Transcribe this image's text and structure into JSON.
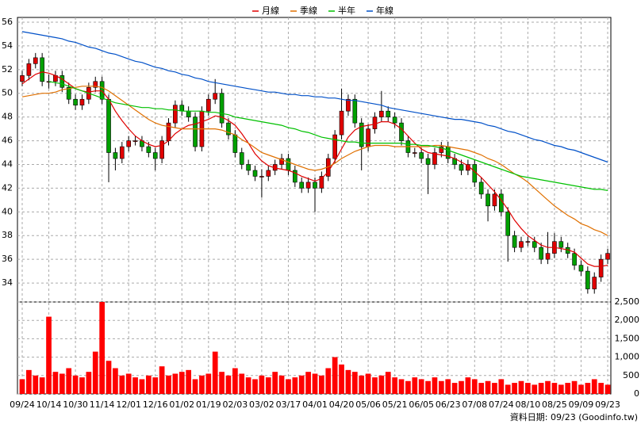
{
  "chart_data": [
    {
      "type": "candlestick",
      "up_color": "#e00000",
      "down_color": "#00a000",
      "ylim": [
        32.4,
        56.4
      ],
      "yticks": [
        34,
        36,
        38,
        40,
        42,
        44,
        46,
        48,
        50,
        52,
        54,
        56
      ],
      "grid": true,
      "legend": "top",
      "ohlc": [
        [
          51,
          51.9,
          50.6,
          51.5
        ],
        [
          51.5,
          52.9,
          51.1,
          52.5
        ],
        [
          52.5,
          53.4,
          52.1,
          53
        ],
        [
          53,
          53.4,
          50.6,
          51
        ],
        [
          51,
          51.6,
          50.4,
          51
        ],
        [
          51,
          51.9,
          50.6,
          51.5
        ],
        [
          51.5,
          51.9,
          50.1,
          50.5
        ],
        [
          50.5,
          50.9,
          49.1,
          49.5
        ],
        [
          49.5,
          49.9,
          48.6,
          49
        ],
        [
          49,
          49.9,
          48.6,
          49.5
        ],
        [
          49.5,
          50.9,
          49.1,
          50.5
        ],
        [
          50.5,
          51.4,
          50.1,
          51
        ],
        [
          51,
          51.4,
          49.1,
          49.5
        ],
        [
          49.5,
          49.9,
          42.5,
          45
        ],
        [
          45,
          45.4,
          43.5,
          44.5
        ],
        [
          44.5,
          45.9,
          44.1,
          45.5
        ],
        [
          45.5,
          46.4,
          45.1,
          46
        ],
        [
          46,
          46.4,
          45.6,
          46
        ],
        [
          46,
          46.4,
          45.1,
          45.5
        ],
        [
          45.5,
          45.9,
          44.6,
          45
        ],
        [
          45,
          45.4,
          43.5,
          44.5
        ],
        [
          44.5,
          46.4,
          44.1,
          46
        ],
        [
          46,
          47.9,
          45.6,
          47.5
        ],
        [
          47.5,
          49.4,
          47.1,
          49
        ],
        [
          49,
          49.4,
          48.1,
          48.5
        ],
        [
          48.5,
          48.9,
          47.6,
          48
        ],
        [
          48,
          48.4,
          45.1,
          45.5
        ],
        [
          45.5,
          48.9,
          45.1,
          48.5
        ],
        [
          48.5,
          49.9,
          48.1,
          49.5
        ],
        [
          49.5,
          51.2,
          49.1,
          50
        ],
        [
          50,
          50.4,
          47.1,
          47.5
        ],
        [
          47.5,
          47.9,
          46.1,
          46.5
        ],
        [
          46.5,
          46.9,
          44.6,
          45
        ],
        [
          45,
          45.4,
          43.6,
          44
        ],
        [
          44,
          44.4,
          43.1,
          43.5
        ],
        [
          43.5,
          43.9,
          42.6,
          43
        ],
        [
          43,
          43.6,
          41.2,
          43
        ],
        [
          43,
          43.9,
          42.6,
          43.5
        ],
        [
          43.5,
          44.4,
          43.1,
          44
        ],
        [
          44,
          44.9,
          43.6,
          44.5
        ],
        [
          44.5,
          44.9,
          43.1,
          43.5
        ],
        [
          43.5,
          43.9,
          42.1,
          42.5
        ],
        [
          42.5,
          42.9,
          41.6,
          42
        ],
        [
          42,
          42.9,
          41.6,
          42.5
        ],
        [
          42.5,
          42.9,
          40,
          42
        ],
        [
          42,
          43.4,
          41.6,
          43
        ],
        [
          43,
          44.9,
          42.6,
          44.5
        ],
        [
          44.5,
          46.9,
          44.1,
          46.5
        ],
        [
          46.5,
          50.4,
          46.1,
          48.5
        ],
        [
          48.5,
          49.9,
          48.1,
          49.5
        ],
        [
          49.5,
          49.9,
          47.1,
          47.5
        ],
        [
          47.5,
          47.9,
          43.5,
          45.5
        ],
        [
          45.5,
          47.4,
          45.1,
          47
        ],
        [
          47,
          48.4,
          46.6,
          48
        ],
        [
          48,
          50.2,
          47.6,
          48.5
        ],
        [
          48.5,
          48.9,
          47.6,
          48
        ],
        [
          48,
          48.4,
          47.1,
          47.5
        ],
        [
          47.5,
          47.9,
          45.6,
          46
        ],
        [
          46,
          46.4,
          44.6,
          45
        ],
        [
          45,
          45.4,
          44.6,
          45
        ],
        [
          45,
          45.4,
          44.1,
          44.5
        ],
        [
          44.5,
          44.9,
          41.5,
          44
        ],
        [
          44,
          45.4,
          43.6,
          45
        ],
        [
          45,
          45.9,
          44.6,
          45.5
        ],
        [
          45.5,
          45.9,
          44.1,
          44.5
        ],
        [
          44.5,
          44.9,
          43.6,
          44
        ],
        [
          44,
          44.4,
          43.1,
          43.5
        ],
        [
          43.5,
          44.4,
          43.1,
          44
        ],
        [
          44,
          44.4,
          42.1,
          42.5
        ],
        [
          42.5,
          42.9,
          41.1,
          41.5
        ],
        [
          41.5,
          41.9,
          39.2,
          40.5
        ],
        [
          40.5,
          41.9,
          40.1,
          41.5
        ],
        [
          41.5,
          41.9,
          39.6,
          40
        ],
        [
          40,
          40.4,
          35.8,
          38
        ],
        [
          38,
          38.4,
          36.6,
          37
        ],
        [
          37,
          37.9,
          36.6,
          37.5
        ],
        [
          37.5,
          37.9,
          37.1,
          37.5
        ],
        [
          37.5,
          37.9,
          36.6,
          37
        ],
        [
          37,
          37.4,
          35.6,
          36
        ],
        [
          36,
          38.3,
          35.6,
          36.5
        ],
        [
          36.5,
          38.2,
          36.1,
          37.5
        ],
        [
          37.5,
          37.9,
          36.6,
          37
        ],
        [
          37,
          37.4,
          36.1,
          36.5
        ],
        [
          36.5,
          36.9,
          35.1,
          35.5
        ],
        [
          35.5,
          35.9,
          34.6,
          35
        ],
        [
          35,
          35.4,
          33.1,
          33.5
        ],
        [
          33.5,
          34.9,
          33.1,
          34.5
        ],
        [
          34.5,
          36.4,
          34.1,
          36
        ],
        [
          36,
          36.9,
          35.6,
          36.5
        ]
      ],
      "series": [
        {
          "name": "月線",
          "color": "#e00000",
          "values": [
            50.8,
            51.2,
            51.6,
            51.8,
            51.7,
            51.5,
            51.2,
            50.8,
            50.4,
            50.2,
            50.1,
            50.2,
            50.2,
            49.5,
            48.5,
            47.7,
            47.0,
            46.4,
            46.0,
            45.7,
            45.5,
            45.6,
            46.0,
            46.6,
            47.0,
            47.3,
            47.4,
            47.6,
            47.8,
            48.1,
            48.0,
            47.7,
            47.3,
            46.6,
            45.8,
            44.9,
            44.3,
            43.9,
            43.7,
            43.6,
            43.5,
            43.3,
            43.0,
            42.8,
            42.6,
            42.8,
            43.4,
            44.3,
            45.3,
            46.3,
            46.9,
            47.2,
            47.3,
            47.4,
            47.6,
            47.6,
            47.4,
            47.0,
            46.4,
            45.8,
            45.3,
            45.0,
            44.9,
            44.8,
            44.7,
            44.5,
            44.2,
            43.9,
            43.4,
            42.9,
            42.3,
            41.7,
            41.0,
            40.2,
            39.3,
            38.6,
            38.0,
            37.6,
            37.2,
            37.0,
            37.0,
            36.9,
            36.8,
            36.6,
            36.1,
            35.6,
            35.4,
            35.4,
            35.5
          ]
        },
        {
          "name": "季線",
          "color": "#e07000",
          "values": [
            49.7,
            49.8,
            49.9,
            50.0,
            50.0,
            50.1,
            50.3,
            50.4,
            50.5,
            50.6,
            50.6,
            50.6,
            50.5,
            50.2,
            49.8,
            49.4,
            49.0,
            48.6,
            48.2,
            47.8,
            47.5,
            47.3,
            47.2,
            47.1,
            47.0,
            47.0,
            47.0,
            47.0,
            47.0,
            47.0,
            46.9,
            46.7,
            46.5,
            46.1,
            45.8,
            45.4,
            45.0,
            44.8,
            44.6,
            44.4,
            44.2,
            44.0,
            43.8,
            43.6,
            43.5,
            43.6,
            43.8,
            44.1,
            44.5,
            44.8,
            45.1,
            45.3,
            45.5,
            45.6,
            45.6,
            45.6,
            45.5,
            45.5,
            45.5,
            45.5,
            45.5,
            45.5,
            45.6,
            45.6,
            45.5,
            45.4,
            45.3,
            45.2,
            45.0,
            44.8,
            44.5,
            44.3,
            44.0,
            43.6,
            43.2,
            42.9,
            42.5,
            42.0,
            41.5,
            41.0,
            40.5,
            40.1,
            39.7,
            39.4,
            39.0,
            38.8,
            38.5,
            38.3,
            38.0
          ]
        },
        {
          "name": "半年",
          "color": "#00c000",
          "values": [
            null,
            null,
            null,
            null,
            51.0,
            50.9,
            50.8,
            50.6,
            50.4,
            50.2,
            50.0,
            49.8,
            49.6,
            49.4,
            49.2,
            49.1,
            49.0,
            48.9,
            48.8,
            48.8,
            48.7,
            48.7,
            48.6,
            48.6,
            48.5,
            48.5,
            48.5,
            48.5,
            48.4,
            48.4,
            48.3,
            48.2,
            48.0,
            47.9,
            47.8,
            47.7,
            47.6,
            47.5,
            47.4,
            47.3,
            47.1,
            47.0,
            46.8,
            46.7,
            46.5,
            46.3,
            46.2,
            46.1,
            46.0,
            45.9,
            45.9,
            45.8,
            45.8,
            45.8,
            45.8,
            45.8,
            45.8,
            45.8,
            45.7,
            45.7,
            45.6,
            45.6,
            45.5,
            45.4,
            45.2,
            45.0,
            44.8,
            44.6,
            44.4,
            44.2,
            44.0,
            43.8,
            43.6,
            43.4,
            43.2,
            43.0,
            42.9,
            42.8,
            42.7,
            42.6,
            42.5,
            42.4,
            42.3,
            42.2,
            42.1,
            42.0,
            41.9,
            41.9,
            41.8
          ]
        },
        {
          "name": "年線",
          "color": "#0050c8",
          "values": [
            55.2,
            55.1,
            55.0,
            54.9,
            54.8,
            54.7,
            54.6,
            54.4,
            54.3,
            54.1,
            53.9,
            53.8,
            53.6,
            53.4,
            53.3,
            53.1,
            52.9,
            52.7,
            52.6,
            52.4,
            52.2,
            52.1,
            51.9,
            51.8,
            51.6,
            51.5,
            51.3,
            51.2,
            51.0,
            50.9,
            50.8,
            50.7,
            50.6,
            50.5,
            50.4,
            50.3,
            50.2,
            50.1,
            50.1,
            50.0,
            49.9,
            49.9,
            49.8,
            49.8,
            49.7,
            49.7,
            49.6,
            49.6,
            49.5,
            49.4,
            49.4,
            49.3,
            49.2,
            49.1,
            49.0,
            48.8,
            48.7,
            48.6,
            48.5,
            48.4,
            48.3,
            48.2,
            48.1,
            48.0,
            47.9,
            47.8,
            47.8,
            47.7,
            47.6,
            47.5,
            47.3,
            47.2,
            47.0,
            46.8,
            46.7,
            46.5,
            46.3,
            46.1,
            46.0,
            45.8,
            45.6,
            45.5,
            45.3,
            45.2,
            45.0,
            44.8,
            44.6,
            44.4,
            44.2
          ]
        }
      ]
    },
    {
      "type": "bar",
      "color": "#ff0000",
      "ylim": [
        0,
        2500
      ],
      "grid": true,
      "yticks": [
        0,
        500,
        {
          "value": 1000,
          "label": "1,000"
        },
        {
          "value": 1500,
          "label": "1,500"
        },
        {
          "value": 2000,
          "label": "2,000"
        },
        {
          "value": 2500,
          "label": "2,500"
        }
      ],
      "categories": [
        "09/24",
        null,
        null,
        null,
        "10/14",
        null,
        null,
        null,
        "10/30",
        null,
        null,
        null,
        "11/14",
        null,
        null,
        null,
        "12/01",
        null,
        null,
        null,
        "12/16",
        null,
        null,
        null,
        "01/02",
        null,
        null,
        null,
        "01/19",
        null,
        null,
        null,
        "02/03",
        null,
        null,
        null,
        "03/02",
        null,
        null,
        null,
        "03/17",
        null,
        null,
        null,
        "04/01",
        null,
        null,
        null,
        "04/20",
        null,
        null,
        null,
        "05/06",
        null,
        null,
        null,
        "05/21",
        null,
        null,
        null,
        "06/05",
        null,
        null,
        null,
        "06/23",
        null,
        null,
        null,
        "07/08",
        null,
        null,
        null,
        "07/24",
        null,
        null,
        null,
        "08/10",
        null,
        null,
        null,
        "08/25",
        null,
        null,
        null,
        "09/09",
        null,
        null,
        null,
        "09/23"
      ],
      "values": [
        400,
        650,
        500,
        450,
        2100,
        600,
        550,
        700,
        500,
        450,
        600,
        1150,
        2500,
        900,
        700,
        500,
        550,
        450,
        400,
        500,
        450,
        750,
        500,
        550,
        600,
        650,
        400,
        500,
        550,
        1150,
        600,
        500,
        700,
        550,
        450,
        400,
        500,
        450,
        600,
        500,
        400,
        450,
        500,
        600,
        550,
        500,
        700,
        1000,
        800,
        650,
        600,
        500,
        550,
        450,
        500,
        600,
        450,
        400,
        350,
        450,
        400,
        350,
        450,
        350,
        400,
        300,
        350,
        450,
        400,
        300,
        350,
        300,
        400,
        250,
        300,
        350,
        300,
        250,
        300,
        350,
        300,
        250,
        300,
        350,
        250,
        300,
        400,
        300,
        250
      ],
      "source": "資料日期: 09/23  (Goodinfo.tw)"
    }
  ]
}
